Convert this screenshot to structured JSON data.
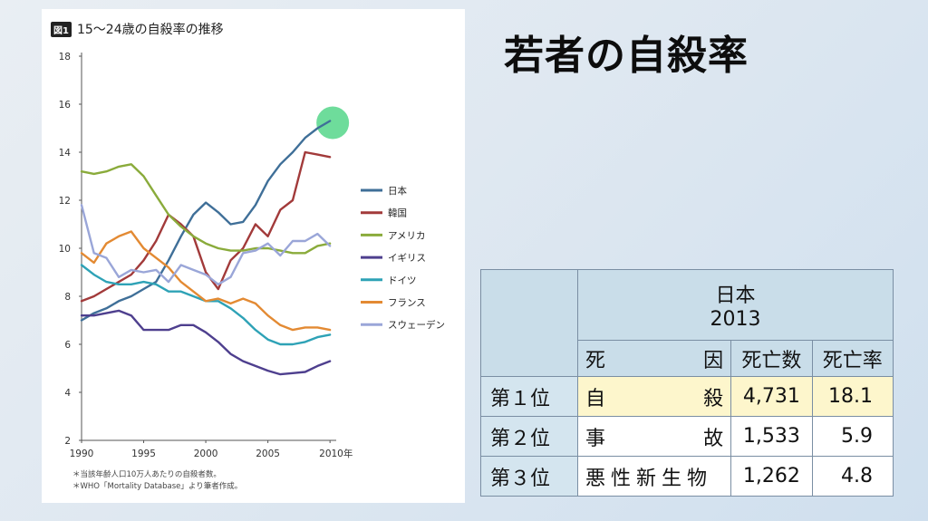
{
  "slide": {
    "title": "若者の自殺率"
  },
  "figure": {
    "badge": "図1",
    "title": "15～24歳の自殺率の推移",
    "notes": [
      "＊当該年齢人口10万人あたりの自殺者数。",
      "＊WHO「Mortality Database」より筆者作成。"
    ]
  },
  "chart_data": {
    "type": "line",
    "title": "15～24歳の自殺率の推移",
    "x": [
      1990,
      1991,
      1992,
      1993,
      1994,
      1995,
      1996,
      1997,
      1998,
      1999,
      2000,
      2001,
      2002,
      2003,
      2004,
      2005,
      2006,
      2007,
      2008,
      2009,
      2010
    ],
    "x_ticks": [
      "1990",
      "1995",
      "2000",
      "2005",
      "2010年"
    ],
    "y_ticks": [
      2,
      4,
      6,
      8,
      10,
      12,
      14,
      16,
      18
    ],
    "ylim": [
      2,
      18
    ],
    "xlim": [
      1990,
      2010.5
    ],
    "grid": false,
    "legend_position": "right",
    "series": [
      {
        "name": "日本",
        "color": "#3f6f98",
        "values": [
          7.0,
          7.3,
          7.5,
          7.8,
          8.0,
          8.3,
          8.6,
          9.5,
          10.5,
          11.4,
          11.9,
          11.5,
          11.0,
          11.1,
          11.8,
          12.8,
          13.5,
          14.0,
          14.6,
          15.0,
          15.3
        ]
      },
      {
        "name": "韓国",
        "color": "#a23a3a",
        "values": [
          7.8,
          8.0,
          8.3,
          8.6,
          8.9,
          9.5,
          10.3,
          11.4,
          11.0,
          10.5,
          9.0,
          8.3,
          9.5,
          10.0,
          11.0,
          10.5,
          11.6,
          12.0,
          14.0,
          13.9,
          13.8
        ]
      },
      {
        "name": "アメリカ",
        "color": "#8aab3b",
        "values": [
          13.2,
          13.1,
          13.2,
          13.4,
          13.5,
          13.0,
          12.2,
          11.4,
          10.9,
          10.5,
          10.2,
          10.0,
          9.9,
          9.9,
          10.0,
          10.0,
          9.9,
          9.8,
          9.8,
          10.1,
          10.2
        ]
      },
      {
        "name": "イギリス",
        "color": "#4e3f8e",
        "values": [
          7.2,
          7.2,
          7.3,
          7.4,
          7.2,
          6.6,
          6.6,
          6.6,
          6.8,
          6.8,
          6.5,
          6.1,
          5.6,
          5.3,
          5.1,
          4.9,
          4.75,
          4.8,
          4.85,
          5.1,
          5.3
        ]
      },
      {
        "name": "ドイツ",
        "color": "#2ea2b6",
        "values": [
          9.3,
          8.9,
          8.6,
          8.5,
          8.5,
          8.6,
          8.5,
          8.2,
          8.2,
          8.0,
          7.8,
          7.8,
          7.5,
          7.1,
          6.6,
          6.2,
          6.0,
          6.0,
          6.1,
          6.3,
          6.4
        ]
      },
      {
        "name": "フランス",
        "color": "#e38a33",
        "values": [
          9.8,
          9.4,
          10.2,
          10.5,
          10.7,
          10.0,
          9.6,
          9.2,
          8.6,
          8.2,
          7.8,
          7.9,
          7.7,
          7.9,
          7.7,
          7.2,
          6.8,
          6.6,
          6.7,
          6.7,
          6.6
        ]
      },
      {
        "name": "スウェーデン",
        "color": "#9aa6d8",
        "values": [
          11.8,
          9.8,
          9.6,
          8.8,
          9.1,
          9.0,
          9.1,
          8.6,
          9.3,
          9.1,
          8.9,
          8.5,
          8.8,
          9.8,
          9.9,
          10.2,
          9.7,
          10.3,
          10.3,
          10.6,
          10.1
        ]
      }
    ],
    "highlight": {
      "x": 2010,
      "y": 15.3,
      "color": "#55d68a"
    }
  },
  "table": {
    "country": "日本",
    "year": "2013",
    "headers": {
      "cause_1": "死",
      "cause_2": "因",
      "deaths": "死亡数",
      "rate": "死亡率"
    },
    "rows": [
      {
        "rank": "第１位",
        "cause_1": "自",
        "cause_2": "殺",
        "deaths": "4,731",
        "rate": "18.1"
      },
      {
        "rank": "第２位",
        "cause_1": "事",
        "cause_2": "故",
        "deaths": "1,533",
        "rate": "5.9"
      },
      {
        "rank": "第３位",
        "cause_1": "悪性新生物",
        "cause_2": "",
        "deaths": "1,262",
        "rate": "4.8"
      }
    ]
  }
}
